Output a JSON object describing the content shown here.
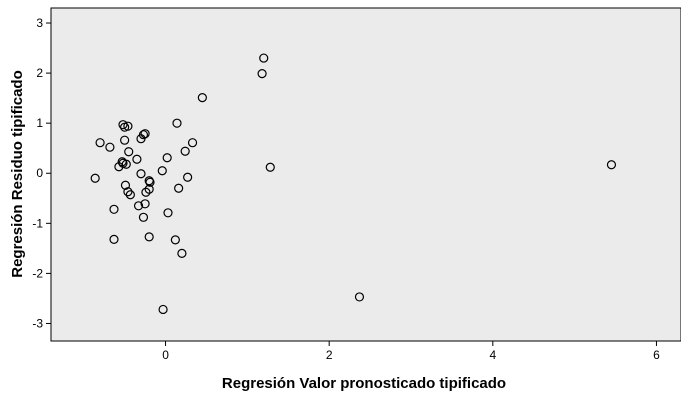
{
  "chart_data": {
    "type": "scatter",
    "xlabel": "Regresión Valor pronosticado tipificado",
    "ylabel": "Regresión Residuo tipificado",
    "xlim": [
      -1.4,
      6.3
    ],
    "ylim": [
      -3.35,
      3.3
    ],
    "xticks": [
      0,
      2,
      4,
      6
    ],
    "yticks": [
      -3,
      -2,
      -1,
      0,
      1,
      2,
      3
    ],
    "grid": false,
    "plot_background": "#ebebeb",
    "marker": "open-circle",
    "points": [
      {
        "x": 1.2,
        "y": 2.3
      },
      {
        "x": 1.18,
        "y": 1.99
      },
      {
        "x": 0.45,
        "y": 1.51
      },
      {
        "x": 0.14,
        "y": 1.0
      },
      {
        "x": -0.52,
        "y": 0.97
      },
      {
        "x": -0.5,
        "y": 0.92
      },
      {
        "x": -0.46,
        "y": 0.94
      },
      {
        "x": -0.25,
        "y": 0.79
      },
      {
        "x": -0.27,
        "y": 0.77
      },
      {
        "x": -0.3,
        "y": 0.69
      },
      {
        "x": -0.5,
        "y": 0.66
      },
      {
        "x": -0.8,
        "y": 0.61
      },
      {
        "x": 0.33,
        "y": 0.61
      },
      {
        "x": -0.68,
        "y": 0.52
      },
      {
        "x": -0.45,
        "y": 0.43
      },
      {
        "x": 0.24,
        "y": 0.44
      },
      {
        "x": 0.02,
        "y": 0.31
      },
      {
        "x": -0.35,
        "y": 0.28
      },
      {
        "x": -0.53,
        "y": 0.23
      },
      {
        "x": -0.52,
        "y": 0.2
      },
      {
        "x": -0.48,
        "y": 0.18
      },
      {
        "x": -0.57,
        "y": 0.13
      },
      {
        "x": 1.28,
        "y": 0.12
      },
      {
        "x": -0.04,
        "y": 0.05
      },
      {
        "x": -0.3,
        "y": -0.01
      },
      {
        "x": -0.86,
        "y": -0.1
      },
      {
        "x": 0.27,
        "y": -0.08
      },
      {
        "x": -0.2,
        "y": -0.15
      },
      {
        "x": -0.19,
        "y": -0.18
      },
      {
        "x": -0.49,
        "y": -0.24
      },
      {
        "x": 0.16,
        "y": -0.3
      },
      {
        "x": -0.2,
        "y": -0.32
      },
      {
        "x": -0.24,
        "y": -0.38
      },
      {
        "x": -0.46,
        "y": -0.37
      },
      {
        "x": -0.43,
        "y": -0.43
      },
      {
        "x": -0.25,
        "y": -0.61
      },
      {
        "x": -0.33,
        "y": -0.65
      },
      {
        "x": -0.63,
        "y": -0.72
      },
      {
        "x": 0.03,
        "y": -0.79
      },
      {
        "x": -0.27,
        "y": -0.88
      },
      {
        "x": -0.2,
        "y": -1.27
      },
      {
        "x": 0.12,
        "y": -1.33
      },
      {
        "x": -0.63,
        "y": -1.32
      },
      {
        "x": 0.2,
        "y": -1.6
      },
      {
        "x": 2.37,
        "y": -2.47
      },
      {
        "x": -0.03,
        "y": -2.72
      },
      {
        "x": 5.45,
        "y": 0.17
      }
    ]
  }
}
